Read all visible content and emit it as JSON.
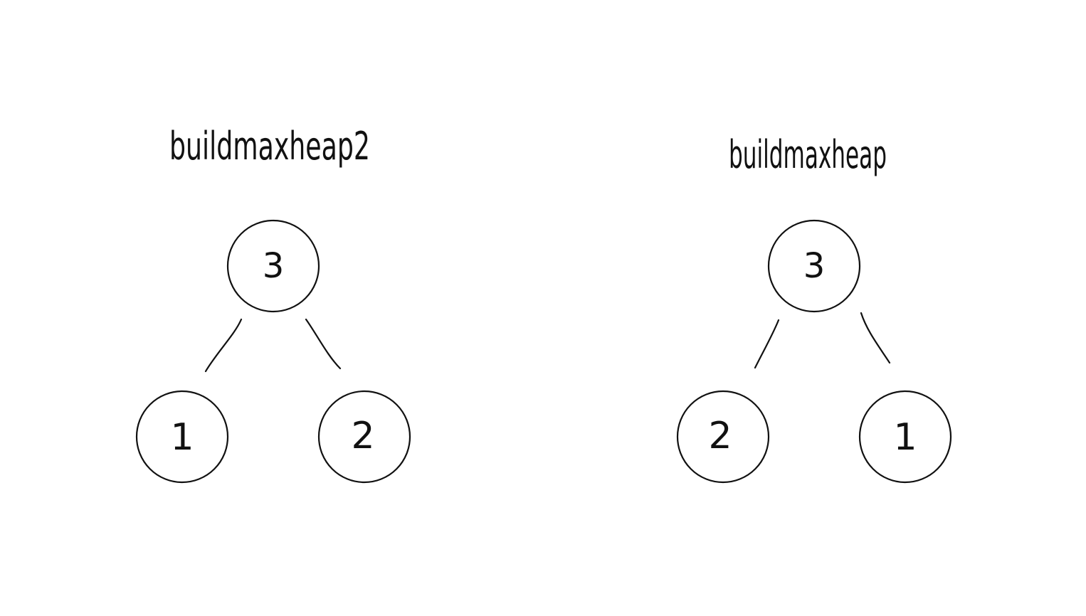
{
  "diagrams": [
    {
      "title": "buildmaxheap2",
      "root": {
        "label": "3"
      },
      "left": {
        "label": "1"
      },
      "right": {
        "label": "2"
      }
    },
    {
      "title": "buildmaxheap",
      "root": {
        "label": "3"
      },
      "left": {
        "label": "2"
      },
      "right": {
        "label": "1"
      }
    }
  ],
  "colors": {
    "ink": "#111111",
    "background": "#ffffff"
  }
}
